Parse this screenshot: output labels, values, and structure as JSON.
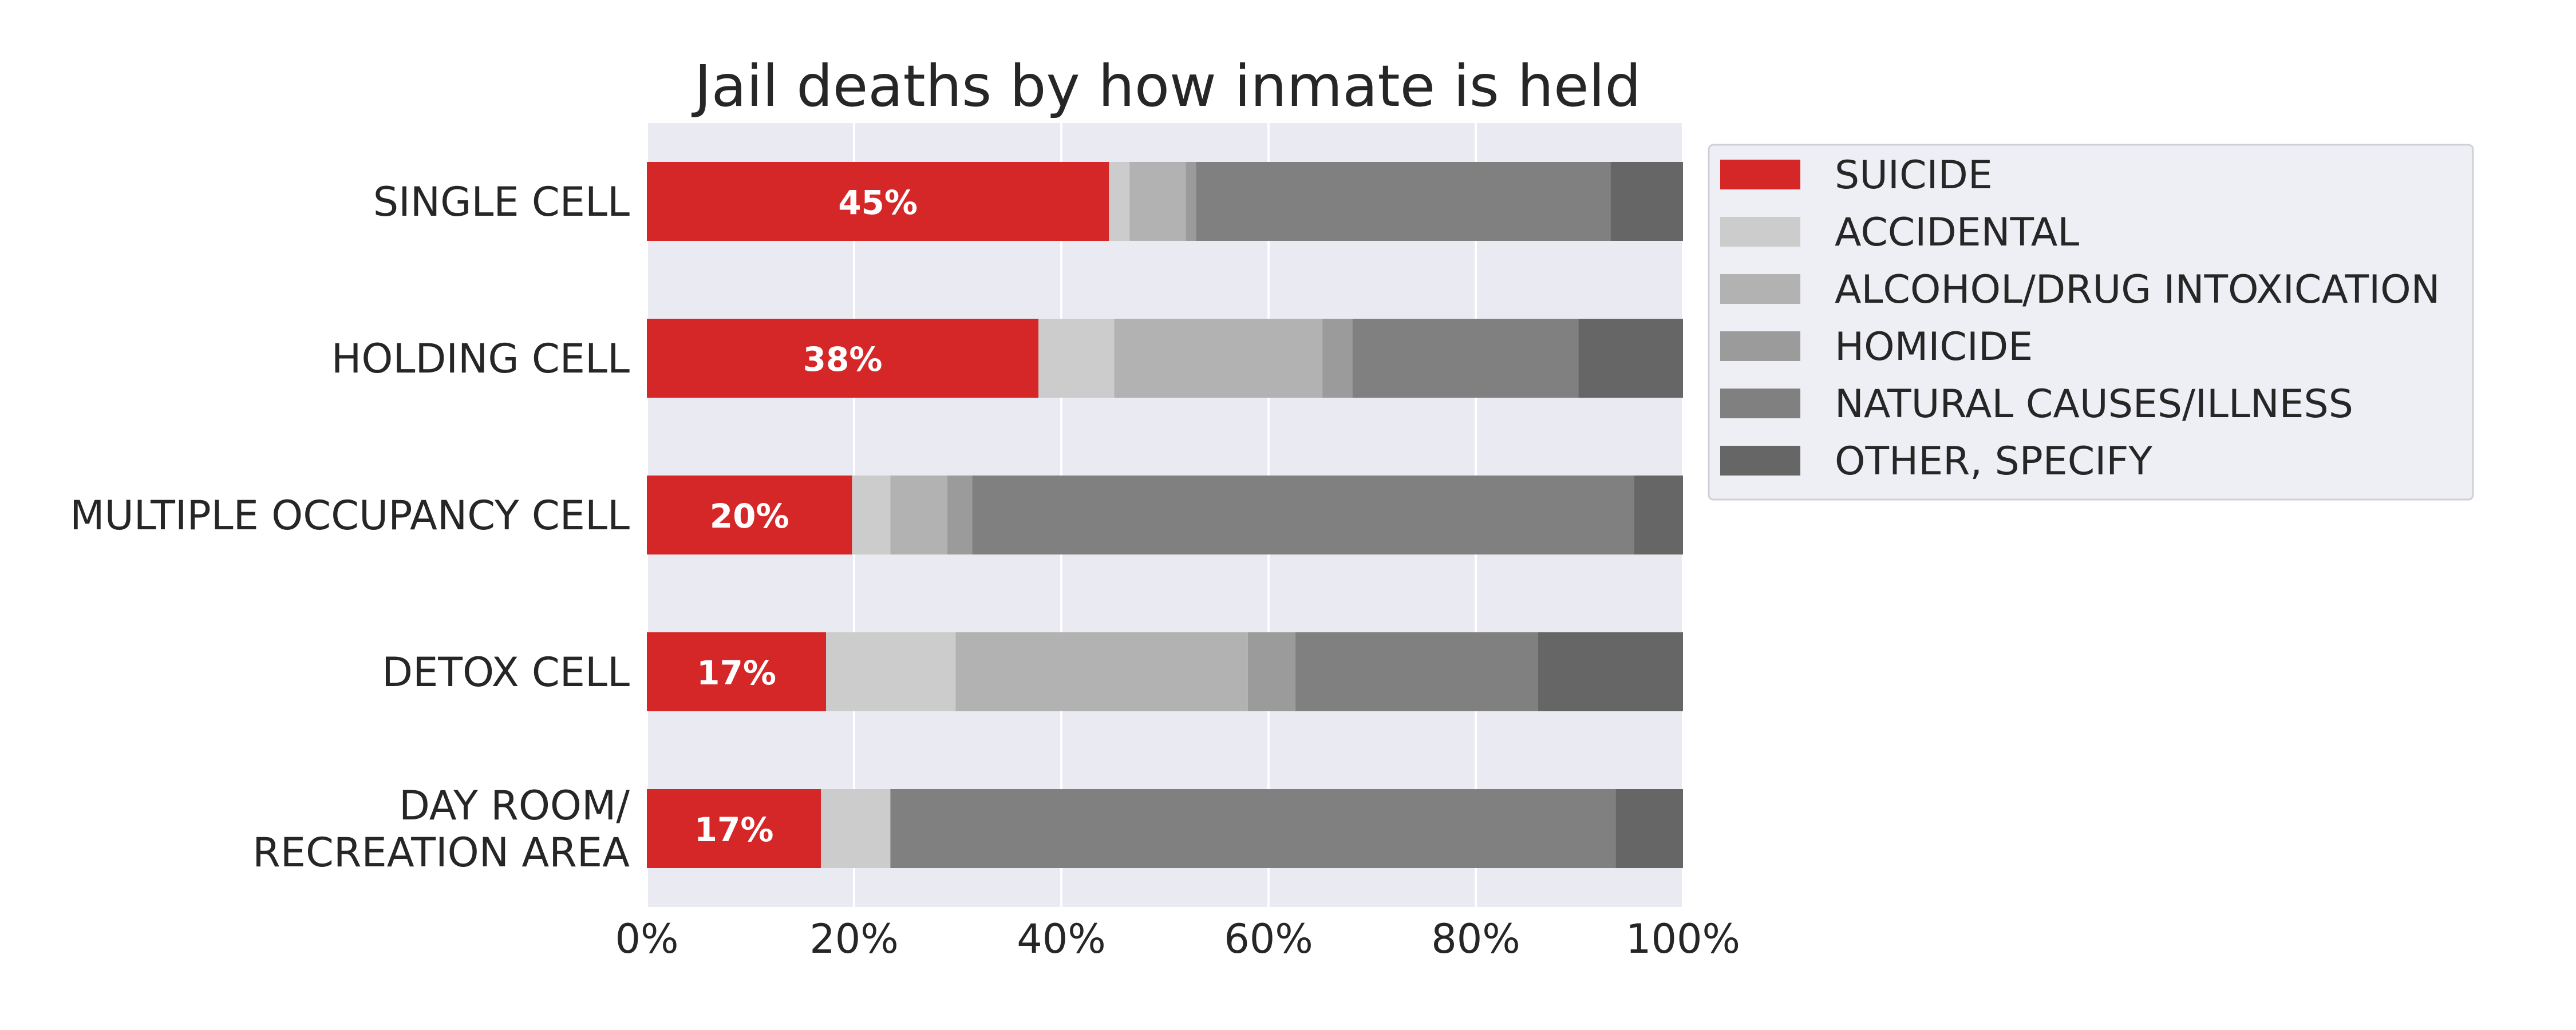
{
  "chart_data": {
    "type": "bar",
    "orientation": "horizontal",
    "stacked": true,
    "normalized": true,
    "title": "Jail deaths by how inmate is held",
    "categories": [
      "SINGLE CELL",
      "HOLDING CELL",
      "MULTIPLE OCCUPANCY CELL",
      "DETOX CELL",
      "DAY ROOM/\nRECREATION AREA"
    ],
    "series": [
      {
        "name": "SUICIDE",
        "color": "#d62728",
        "values": [
          44.6,
          37.8,
          19.8,
          17.3,
          16.8
        ]
      },
      {
        "name": "ACCIDENTAL",
        "color": "#cccccc",
        "values": [
          2.0,
          7.3,
          3.7,
          12.5,
          6.7
        ]
      },
      {
        "name": "ALCOHOL/DRUG INTOXICATION",
        "color": "#b2b2b2",
        "values": [
          5.4,
          20.1,
          5.5,
          28.2,
          0
        ]
      },
      {
        "name": "HOMICIDE",
        "color": "#9b9b9b",
        "values": [
          1.0,
          2.9,
          2.4,
          4.6,
          0
        ]
      },
      {
        "name": "NATURAL CAUSES/ILLNESS",
        "color": "#808080",
        "values": [
          40.0,
          21.8,
          63.9,
          23.4,
          70.0
        ]
      },
      {
        "name": "OTHER, SPECIFY",
        "color": "#666666",
        "values": [
          7.0,
          10.1,
          4.7,
          14.0,
          6.5
        ]
      }
    ],
    "bar_labels": [
      "45%",
      "38%",
      "20%",
      "17%",
      "17%"
    ],
    "xlim": [
      0,
      100
    ],
    "xticks": [
      "0%",
      "20%",
      "40%",
      "60%",
      "80%",
      "100%"
    ],
    "xlabel": "",
    "ylabel": "",
    "grid": true,
    "legend_position": "right"
  }
}
